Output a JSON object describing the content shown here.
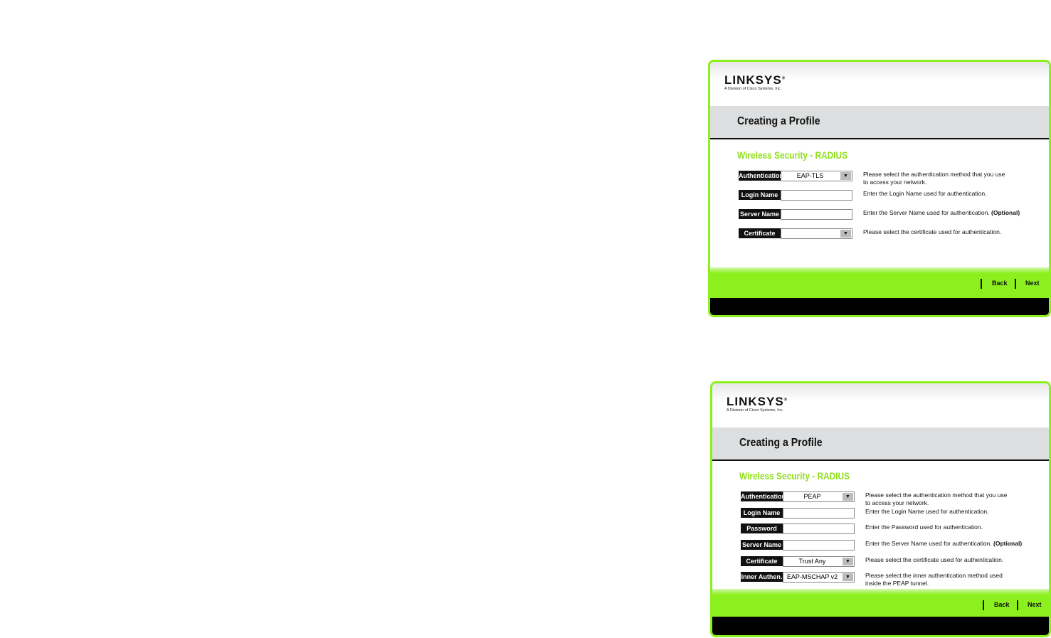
{
  "panels": [
    {
      "logo": "LINKSYS",
      "logo_sub": "A Division of Cisco Systems, Inc.",
      "header_title": "Creating a Profile",
      "section_title": "Wireless Security - RADIUS",
      "rows": [
        {
          "label": "Authentication",
          "type": "select",
          "value": "EAP-TLS",
          "desc": "Please select the authentication method that you use",
          "desc2": "to access your network."
        },
        {
          "label": "Login Name",
          "type": "input",
          "value": "",
          "desc": "Enter the Login Name used for authentication."
        },
        {
          "label": "Server Name",
          "type": "input",
          "value": "",
          "desc": "Enter the Server Name used for authentication.",
          "desc_bold": "(Optional)"
        },
        {
          "label": "Certificate",
          "type": "select",
          "value": "",
          "desc": "Please select the certificate used for authentication."
        }
      ],
      "back": "Back",
      "next": "Next"
    },
    {
      "logo": "LINKSYS",
      "logo_sub": "A Division of Cisco Systems, Inc.",
      "header_title": "Creating a Profile",
      "section_title": "Wireless Security - RADIUS",
      "rows": [
        {
          "label": "Authentication",
          "type": "select",
          "value": "PEAP",
          "desc": "Please select the authentication method that you use",
          "desc2": "to access your network."
        },
        {
          "label": "Login Name",
          "type": "input",
          "value": "",
          "desc": "Enter the Login Name used for authentication."
        },
        {
          "label": "Password",
          "type": "input",
          "value": "",
          "desc": "Enter the Password used for authentication."
        },
        {
          "label": "Server Name",
          "type": "input",
          "value": "",
          "desc": "Enter the Server Name used for authentication.",
          "desc_bold": "(Optional)"
        },
        {
          "label": "Certificate",
          "type": "select",
          "value": "Trust Any",
          "desc": "Please select the certificate used for authentication."
        },
        {
          "label": "Inner Authen.",
          "type": "select",
          "value": "EAP-MSCHAP v2",
          "desc": "Please select the inner authentication method used",
          "desc2": "inside the PEAP tunnel."
        }
      ],
      "back": "Back",
      "next": "Next"
    }
  ],
  "colors": {
    "accent_green": "#8cf01e",
    "title_green": "#8ee01a",
    "label_black": "#111111"
  }
}
